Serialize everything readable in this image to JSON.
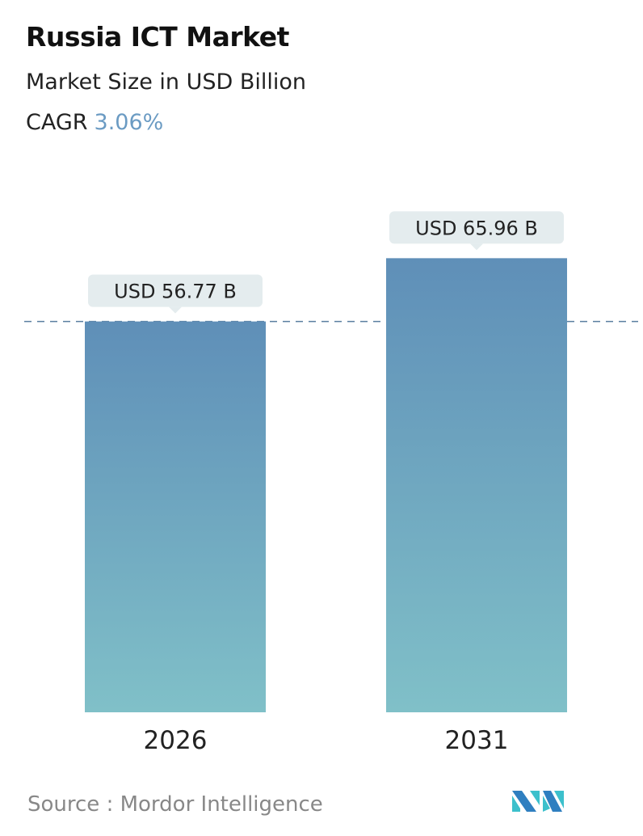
{
  "title": "Russia ICT Market",
  "subtitle": "Market Size in USD Billion",
  "cagr_label": "CAGR",
  "cagr_value": "3.06%",
  "source": "Source :  Mordor Intelligence",
  "colors": {
    "bar_top": "#5f8fb8",
    "bar_bottom": "#80c0c8",
    "cagr": "#6b9bc3",
    "dashed": "#5a7fa0",
    "label_bg": "#e4ecee"
  },
  "chart_data": {
    "type": "bar",
    "categories": [
      "2026",
      "2031"
    ],
    "values": [
      56.77,
      65.96
    ],
    "data_labels": [
      "USD 56.77 B",
      "USD 65.96 B"
    ],
    "ylim": [
      0,
      66
    ],
    "reference_line": {
      "value": 56.77,
      "style": "dashed"
    },
    "grid": false
  }
}
